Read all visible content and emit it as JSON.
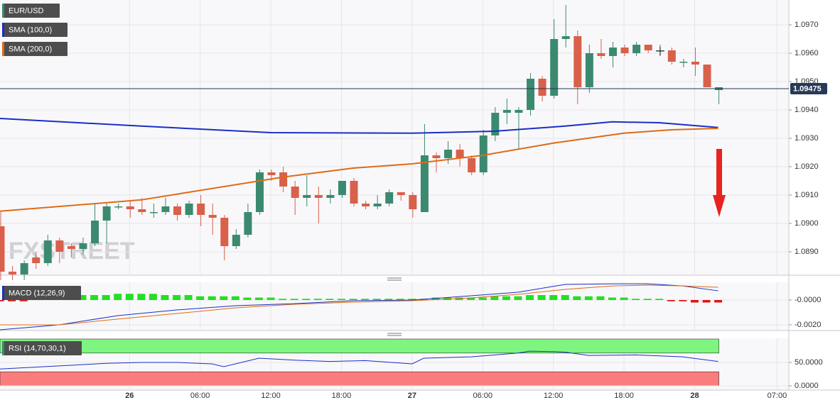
{
  "chart_data": [
    {
      "type": "candlestick",
      "title": "EUR/USD",
      "watermark": "FXSTREET",
      "up_color": "#3b8a6f",
      "down_color": "#d9604a",
      "xlim": [
        0,
        67
      ],
      "xticks": [
        {
          "value": 11,
          "label": "26"
        },
        {
          "value": 17,
          "label": "06:00"
        },
        {
          "value": 23,
          "label": "12:00"
        },
        {
          "value": 29,
          "label": "18:00"
        },
        {
          "value": 35,
          "label": "27"
        },
        {
          "value": 41,
          "label": "06:00"
        },
        {
          "value": 47,
          "label": "12:00"
        },
        {
          "value": 53,
          "label": "18:00"
        },
        {
          "value": 59,
          "label": "28"
        },
        {
          "value": 66,
          "label": "07:00"
        }
      ],
      "ylim": [
        1.088175,
        1.097875
      ],
      "yticks": [
        {
          "value": 1.089,
          "label": "1.0890"
        },
        {
          "value": 1.09,
          "label": "1.0900"
        },
        {
          "value": 1.091,
          "label": "1.0910"
        },
        {
          "value": 1.092,
          "label": "1.0920"
        },
        {
          "value": 1.093,
          "label": "1.0930"
        },
        {
          "value": 1.094,
          "label": "1.0940"
        },
        {
          "value": 1.095,
          "label": "1.0950"
        },
        {
          "value": 1.096,
          "label": "1.0960"
        },
        {
          "value": 1.097,
          "label": "1.0970"
        }
      ],
      "last": 1.09475,
      "open": [
        1.0899,
        1.0883,
        1.0882,
        1.0888,
        1.0886,
        1.0894,
        1.0892,
        1.0891,
        1.0893,
        1.0901,
        1.0906,
        1.0906,
        1.0905,
        1.0904,
        1.0904,
        1.0906,
        1.0903,
        1.0907,
        1.0903,
        1.0902,
        1.0892,
        1.0896,
        1.0904,
        1.0918,
        1.0918,
        1.0913,
        1.0909,
        1.091,
        1.0909,
        1.091,
        1.0915,
        1.0907,
        1.0906,
        1.0907,
        1.0911,
        1.091,
        1.0904,
        1.0924,
        1.0923,
        1.0926,
        1.0923,
        1.0918,
        1.0931,
        1.0939,
        1.0939,
        1.094,
        1.0951,
        1.0945,
        1.0965,
        1.0966,
        1.0948,
        1.096,
        1.0959,
        1.0962,
        1.096,
        1.0963,
        1.0961,
        1.0961,
        1.0957,
        1.0957,
        1.0956,
        1.0947
      ],
      "high": [
        1.0904,
        1.0885,
        1.0887,
        1.089,
        1.0896,
        1.0895,
        1.0893,
        1.0895,
        1.0907,
        1.0907,
        1.0907,
        1.0908,
        1.0909,
        1.0907,
        1.0909,
        1.0907,
        1.0908,
        1.091,
        1.0907,
        1.0903,
        1.0898,
        1.0907,
        1.0919,
        1.0919,
        1.092,
        1.0915,
        1.0917,
        1.0913,
        1.0912,
        1.0915,
        1.0916,
        1.0908,
        1.091,
        1.0912,
        1.0911,
        1.0911,
        1.0935,
        1.0925,
        1.0929,
        1.0928,
        1.0924,
        1.0933,
        1.0941,
        1.0944,
        1.0941,
        1.0953,
        1.0952,
        1.0972,
        1.0977,
        1.0968,
        1.0963,
        1.0965,
        1.0964,
        1.0963,
        1.0964,
        1.0963,
        1.0963,
        1.0962,
        1.0958,
        1.0962,
        1.0956,
        1.0948
      ],
      "low": [
        1.088,
        1.088,
        1.088,
        1.0884,
        1.0885,
        1.0886,
        1.0888,
        1.0889,
        1.0892,
        1.0893,
        1.0905,
        1.0902,
        1.0903,
        1.0902,
        1.0903,
        1.0901,
        1.0902,
        1.0899,
        1.0896,
        1.0887,
        1.0891,
        1.0895,
        1.0903,
        1.0915,
        1.0911,
        1.0903,
        1.0906,
        1.09,
        1.0907,
        1.0909,
        1.0906,
        1.0905,
        1.0905,
        1.0906,
        1.0908,
        1.0902,
        1.0904,
        1.0918,
        1.0921,
        1.092,
        1.0917,
        1.0917,
        1.0929,
        1.0935,
        1.0926,
        1.0938,
        1.0943,
        1.0944,
        1.0962,
        1.0942,
        1.0946,
        1.0958,
        1.0955,
        1.0959,
        1.0959,
        1.096,
        1.0959,
        1.0956,
        1.0955,
        1.0952,
        1.0948,
        1.0942
      ],
      "close": [
        1.0883,
        1.0882,
        1.0886,
        1.0886,
        1.0894,
        1.089,
        1.0891,
        1.0893,
        1.0901,
        1.0906,
        1.0906,
        1.0905,
        1.0904,
        1.0904,
        1.0906,
        1.0903,
        1.0907,
        1.0903,
        1.0902,
        1.0892,
        1.0896,
        1.0904,
        1.0918,
        1.0917,
        1.0913,
        1.0909,
        1.091,
        1.0909,
        1.091,
        1.0915,
        1.0907,
        1.0906,
        1.0907,
        1.0911,
        1.091,
        1.0905,
        1.0924,
        1.0923,
        1.0926,
        1.0923,
        1.0918,
        1.0931,
        1.0939,
        1.094,
        1.094,
        1.0951,
        1.0945,
        1.0965,
        1.0966,
        1.0948,
        1.096,
        1.0959,
        1.0962,
        1.096,
        1.0963,
        1.0961,
        1.0961,
        1.0957,
        1.0957,
        1.0956,
        1.0948,
        1.0948
      ],
      "series": [
        {
          "name": "SMA (100,0)",
          "color": "#1a2fc4",
          "x": [
            0,
            12,
            23,
            35,
            42,
            48,
            52,
            56,
            61
          ],
          "values": [
            1.0937,
            1.09343,
            1.0932,
            1.09318,
            1.09325,
            1.09343,
            1.09358,
            1.09355,
            1.09338
          ]
        },
        {
          "name": "SMA (200,0)",
          "color": "#e06a14",
          "x": [
            0,
            12,
            24,
            30,
            35,
            41,
            47,
            53,
            57,
            61
          ],
          "values": [
            1.09043,
            1.09083,
            1.09163,
            1.09195,
            1.0921,
            1.0924,
            1.09283,
            1.09318,
            1.0933,
            1.09335
          ]
        }
      ]
    },
    {
      "type": "macd",
      "title": "MACD (12,26,9)",
      "ylim": [
        -0.00246,
        0.00143
      ],
      "yticks": [
        {
          "value": 0,
          "label": "-0.0000"
        },
        {
          "value": -0.002,
          "label": "-0.0020"
        }
      ],
      "histogram": {
        "up_color": "#22e022",
        "down_color": "#e01414",
        "values": [
          -0.0001,
          -0.0001,
          -0.0001,
          0.0001,
          0.0002,
          0.0003,
          0.0003,
          0.0004,
          0.0004,
          0.0004,
          0.0005,
          0.0005,
          0.0005,
          0.0005,
          0.0004,
          0.0004,
          0.0004,
          0.0003,
          0.0003,
          0.0003,
          0.0003,
          0.0002,
          0.0002,
          0.0002,
          0.0001,
          0.0001,
          0.0001,
          0.0001,
          0.0001,
          0.0001,
          0.0001,
          0.0001,
          0.0001,
          0.0001,
          0.0001,
          0.0001,
          0.0001,
          0.0002,
          0.0002,
          0.0002,
          0.0002,
          0.0002,
          0.0003,
          0.0003,
          0.0003,
          0.0004,
          0.0004,
          0.0004,
          0.0004,
          0.0003,
          0.0003,
          0.0003,
          0.0002,
          0.0002,
          0.0001,
          0.0001,
          0.0001,
          -0.0001,
          -0.0001,
          -0.0002,
          -0.0002,
          -0.0002
        ]
      },
      "series": [
        {
          "color": "#1a2fc4",
          "x": [
            0,
            5,
            10,
            15,
            20,
            25,
            30,
            35,
            40,
            44,
            48,
            52,
            55,
            58,
            61
          ],
          "values": [
            -0.0024,
            -0.002,
            -0.00126,
            -0.0008,
            -0.00046,
            -0.00029,
            -6e-05,
            0,
            0.00034,
            0.00063,
            0.00126,
            0.00131,
            0.00131,
            0.00114,
            0.00074
          ]
        },
        {
          "color": "#e06a14",
          "x": [
            0,
            5,
            10,
            15,
            20,
            25,
            30,
            35,
            40,
            44,
            48,
            52,
            55,
            58,
            61
          ],
          "values": [
            -0.002,
            -0.002,
            -0.00154,
            -0.00109,
            -0.00063,
            -0.00034,
            -0.00017,
            -6e-05,
            0.00017,
            0.00046,
            0.00086,
            0.00114,
            0.0012,
            0.00114,
            0.00103
          ]
        }
      ]
    },
    {
      "type": "rsi",
      "title": "RSI (14,70,30,1)",
      "ylim": [
        -9.1,
        101.5
      ],
      "yticks": [
        {
          "value": 50,
          "label": "50.0000"
        },
        {
          "value": 0,
          "label": "0.0000"
        }
      ],
      "bands": [
        {
          "from": 70,
          "to": 100,
          "color": "#7ef57e"
        },
        {
          "from": 0,
          "to": 30,
          "color": "#fb7c7c"
        }
      ],
      "series": [
        {
          "color": "#1a2fc4",
          "x": [
            0,
            3,
            6,
            9,
            12,
            15,
            18,
            19,
            22,
            25,
            28,
            31,
            35,
            36,
            40,
            44,
            45,
            47,
            48,
            50,
            54,
            58,
            61
          ],
          "values": [
            36,
            40,
            44,
            48,
            50,
            50,
            47,
            41,
            59,
            55,
            52,
            54,
            47,
            59,
            62,
            70,
            74,
            73,
            72,
            65,
            66,
            62,
            52
          ]
        }
      ]
    }
  ]
}
